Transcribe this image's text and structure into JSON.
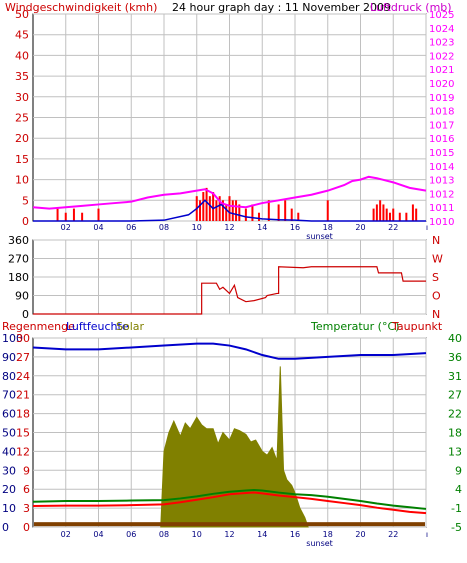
{
  "header": {
    "wind_label": "Windgeschwindigkeit (kmh)",
    "title": "24 hour graph day : 11 November 2009",
    "pressure_label": "Luftdruck (mb)"
  },
  "colors": {
    "wind": "#ff0000",
    "wind_dir_line": "#cc0000",
    "pressure": "#ff00ff",
    "wind_low": "#0000cc",
    "humidity": "#0000cc",
    "solar": "#808000",
    "temperature": "#008000",
    "dewpoint": "#ff0000",
    "rain": "#804000",
    "grid": "#c0c0c0",
    "sunset_text": "#000080",
    "temp_axis": "#008000",
    "left_axis": "#cc0000",
    "dir_axis": "#cc0000"
  },
  "chart_data": [
    {
      "type": "line",
      "title": "24 hour graph day : 11 November 2009",
      "x_ticks": [
        "02",
        "04",
        "06",
        "08",
        "10",
        "12",
        "14",
        "16",
        "18",
        "20",
        "22"
      ],
      "annotation": "sunset",
      "left_axis": {
        "label": "Windgeschwindigkeit (kmh)",
        "range": [
          0,
          50
        ],
        "ticks": [
          0,
          5,
          10,
          15,
          20,
          25,
          30,
          35,
          40,
          45,
          50
        ]
      },
      "right_axis": {
        "label": "Luftdruck (mb)",
        "range": [
          1010,
          1025
        ],
        "ticks": [
          1010,
          1011,
          1012,
          1013,
          1014,
          1015,
          1016,
          1017,
          1018,
          1019,
          1020,
          1021,
          1022,
          1023,
          1024,
          1025
        ]
      },
      "series": [
        {
          "name": "Luftdruck (mb)",
          "axis": "right",
          "x": [
            0,
            1,
            2,
            3,
            4,
            5,
            6,
            7,
            8,
            9,
            10,
            10.5,
            11,
            11.5,
            12,
            13,
            14,
            15,
            16,
            17,
            18,
            19,
            19.5,
            20,
            20.5,
            21,
            22,
            23,
            24
          ],
          "y": [
            1011.0,
            1010.9,
            1011.0,
            1011.1,
            1011.2,
            1011.3,
            1011.4,
            1011.7,
            1011.9,
            1012.0,
            1012.2,
            1012.3,
            1012.0,
            1011.3,
            1011.1,
            1011.0,
            1011.3,
            1011.5,
            1011.7,
            1011.9,
            1012.2,
            1012.6,
            1012.9,
            1013.0,
            1013.2,
            1013.1,
            1012.8,
            1012.4,
            1012.2
          ]
        },
        {
          "name": "Windgeschwindigkeit (kmh)",
          "axis": "left",
          "kind": "bars",
          "x": [
            1.5,
            2.0,
            2.5,
            3.0,
            4.0,
            10.0,
            10.2,
            10.4,
            10.6,
            10.8,
            11.0,
            11.2,
            11.4,
            11.6,
            11.8,
            12.0,
            12.2,
            12.4,
            12.6,
            13.0,
            13.4,
            13.8,
            14.4,
            15.0,
            15.4,
            15.8,
            16.2,
            18.0,
            20.8,
            21.0,
            21.2,
            21.4,
            21.6,
            21.8,
            22.0,
            22.4,
            22.8,
            23.2,
            23.4
          ],
          "y": [
            3,
            2,
            3,
            2,
            3,
            6,
            5,
            7,
            8,
            6,
            7,
            5,
            6,
            5,
            4,
            6,
            5,
            5,
            4,
            3,
            4,
            2,
            5,
            4,
            5,
            3,
            2,
            5,
            3,
            4,
            5,
            4,
            3,
            2,
            3,
            2,
            2,
            4,
            3
          ]
        },
        {
          "name": "Wind (low)",
          "axis": "left",
          "x": [
            0,
            6,
            8,
            9.5,
            10,
            10.5,
            11,
            11.5,
            12,
            13,
            14,
            15,
            16,
            17,
            18,
            20,
            22,
            24
          ],
          "y": [
            0,
            0,
            0.2,
            1.5,
            3,
            5,
            3,
            4,
            2,
            1,
            0.5,
            0.3,
            0.2,
            0,
            0,
            0,
            0,
            0
          ]
        }
      ]
    },
    {
      "type": "line",
      "x_ticks": [
        "02",
        "04",
        "06",
        "08",
        "10",
        "12",
        "14",
        "16",
        "18",
        "20",
        "22"
      ],
      "left_axis": {
        "range": [
          0,
          360
        ],
        "ticks": [
          0,
          90,
          180,
          270,
          360
        ]
      },
      "right_axis": {
        "ticks": [
          "N",
          "O",
          "S",
          "W",
          "N"
        ]
      },
      "series": [
        {
          "name": "Windrichtung",
          "x": [
            0,
            10.3,
            10.3,
            11.2,
            11.4,
            11.6,
            12.0,
            12.3,
            12.5,
            13.0,
            13.5,
            14.2,
            14.3,
            14.9,
            15.0,
            15.0,
            16.5,
            17.0,
            21.0,
            21.1,
            22.5,
            22.6,
            24
          ],
          "y": [
            0,
            0,
            150,
            150,
            120,
            130,
            100,
            140,
            80,
            60,
            65,
            80,
            90,
            100,
            100,
            230,
            225,
            230,
            230,
            200,
            200,
            160,
            160
          ]
        }
      ]
    },
    {
      "type": "area",
      "x_ticks": [
        "02",
        "04",
        "06",
        "08",
        "10",
        "12",
        "14",
        "16",
        "18",
        "20",
        "22"
      ],
      "annotation": "sunset",
      "legend": [
        "Regenmenge",
        "Luftfeuchte",
        "Solar",
        "Temperatur (°C)",
        "Taupunkt"
      ],
      "left_axis": {
        "range": [
          0,
          100
        ],
        "ticks": [
          0,
          10,
          20,
          30,
          40,
          50,
          60,
          70,
          80,
          90,
          100
        ]
      },
      "left_axis_labels": [
        0,
        3,
        6,
        9,
        12,
        15,
        18,
        21,
        24,
        27,
        30
      ],
      "right_axis": {
        "label": "Temperatur (°C)",
        "range": [
          -5,
          40
        ],
        "ticks": [
          -5,
          -1,
          4,
          9,
          13,
          18,
          22,
          27,
          31,
          36,
          40
        ]
      },
      "series": [
        {
          "name": "Luftfeuchte",
          "axis": "left",
          "x": [
            0,
            2,
            4,
            6,
            8,
            10,
            11,
            12,
            13,
            14,
            15,
            16,
            18,
            20,
            22,
            24
          ],
          "y": [
            95,
            94,
            94,
            95,
            96,
            97,
            97,
            96,
            94,
            91,
            89,
            89,
            90,
            91,
            91,
            92
          ]
        },
        {
          "name": "Solar",
          "axis": "left",
          "x": [
            7.8,
            8.0,
            8.3,
            8.6,
            9.0,
            9.3,
            9.6,
            10.0,
            10.3,
            10.6,
            11.0,
            11.3,
            11.6,
            12.0,
            12.3,
            12.6,
            13.0,
            13.3,
            13.6,
            14.0,
            14.3,
            14.6,
            14.9,
            15.1,
            15.3,
            15.5,
            15.8,
            16.0,
            16.3,
            16.6,
            16.8
          ],
          "y": [
            0,
            40,
            50,
            56,
            48,
            55,
            52,
            58,
            54,
            52,
            52,
            44,
            50,
            46,
            52,
            51,
            49,
            45,
            46,
            40,
            38,
            42,
            35,
            85,
            30,
            25,
            22,
            18,
            10,
            5,
            0
          ]
        },
        {
          "name": "Temperatur (°C)",
          "axis": "right",
          "x": [
            0,
            2,
            4,
            6,
            8,
            9,
            10,
            11,
            12,
            13,
            13.5,
            14,
            15,
            16,
            17,
            18,
            19,
            20,
            21,
            22,
            23,
            24
          ],
          "y": [
            1.0,
            1.2,
            1.2,
            1.3,
            1.4,
            1.8,
            2.3,
            2.9,
            3.4,
            3.7,
            3.8,
            3.7,
            3.2,
            2.8,
            2.6,
            2.2,
            1.7,
            1.2,
            0.6,
            0.1,
            -0.3,
            -0.7
          ]
        },
        {
          "name": "Taupunkt",
          "axis": "right",
          "x": [
            0,
            2,
            4,
            6,
            8,
            9,
            10,
            11,
            12,
            13,
            13.5,
            14,
            15,
            16,
            17,
            18,
            19,
            20,
            21,
            22,
            23,
            24
          ],
          "y": [
            0.0,
            0.1,
            0.1,
            0.2,
            0.4,
            0.9,
            1.5,
            2.1,
            2.8,
            3.1,
            3.2,
            3.0,
            2.5,
            2.1,
            1.7,
            1.2,
            0.7,
            0.2,
            -0.4,
            -0.9,
            -1.4,
            -1.7
          ]
        },
        {
          "name": "Regenmenge",
          "axis": "left",
          "x": [
            0,
            24
          ],
          "y": [
            1.5,
            1.5
          ]
        }
      ]
    }
  ]
}
